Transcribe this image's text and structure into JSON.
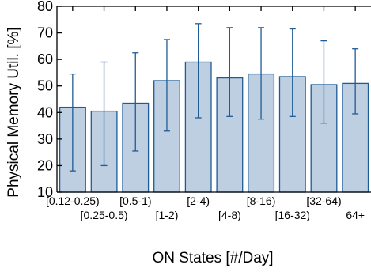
{
  "chart_data": {
    "type": "bar",
    "title": "",
    "xlabel": "ON States [#/Day]",
    "ylabel": "Physical Memory Util. [%]",
    "ylim": [
      10,
      80
    ],
    "yticks": [
      10,
      20,
      30,
      40,
      50,
      60,
      70,
      80
    ],
    "grid": false,
    "categories": [
      "[0.12-0.25)",
      "[0.25-0.5)",
      "[0.5-1)",
      "[1-2)",
      "[2-4)",
      "[4-8)",
      "[8-16)",
      "[16-32)",
      "[32-64)",
      "64+"
    ],
    "series": [
      {
        "values": [
          42,
          40.5,
          43.5,
          52,
          59,
          53,
          54.5,
          53.5,
          50.5,
          51
        ],
        "error_low": [
          18,
          20,
          25.5,
          33,
          38,
          38.5,
          37.5,
          38.5,
          36,
          39.5
        ],
        "error_high": [
          54.5,
          59,
          62.5,
          67.5,
          73.5,
          72,
          72,
          71.5,
          67,
          64
        ],
        "color": "#bfcfe2",
        "edge_color": "#1f5b94"
      }
    ]
  }
}
